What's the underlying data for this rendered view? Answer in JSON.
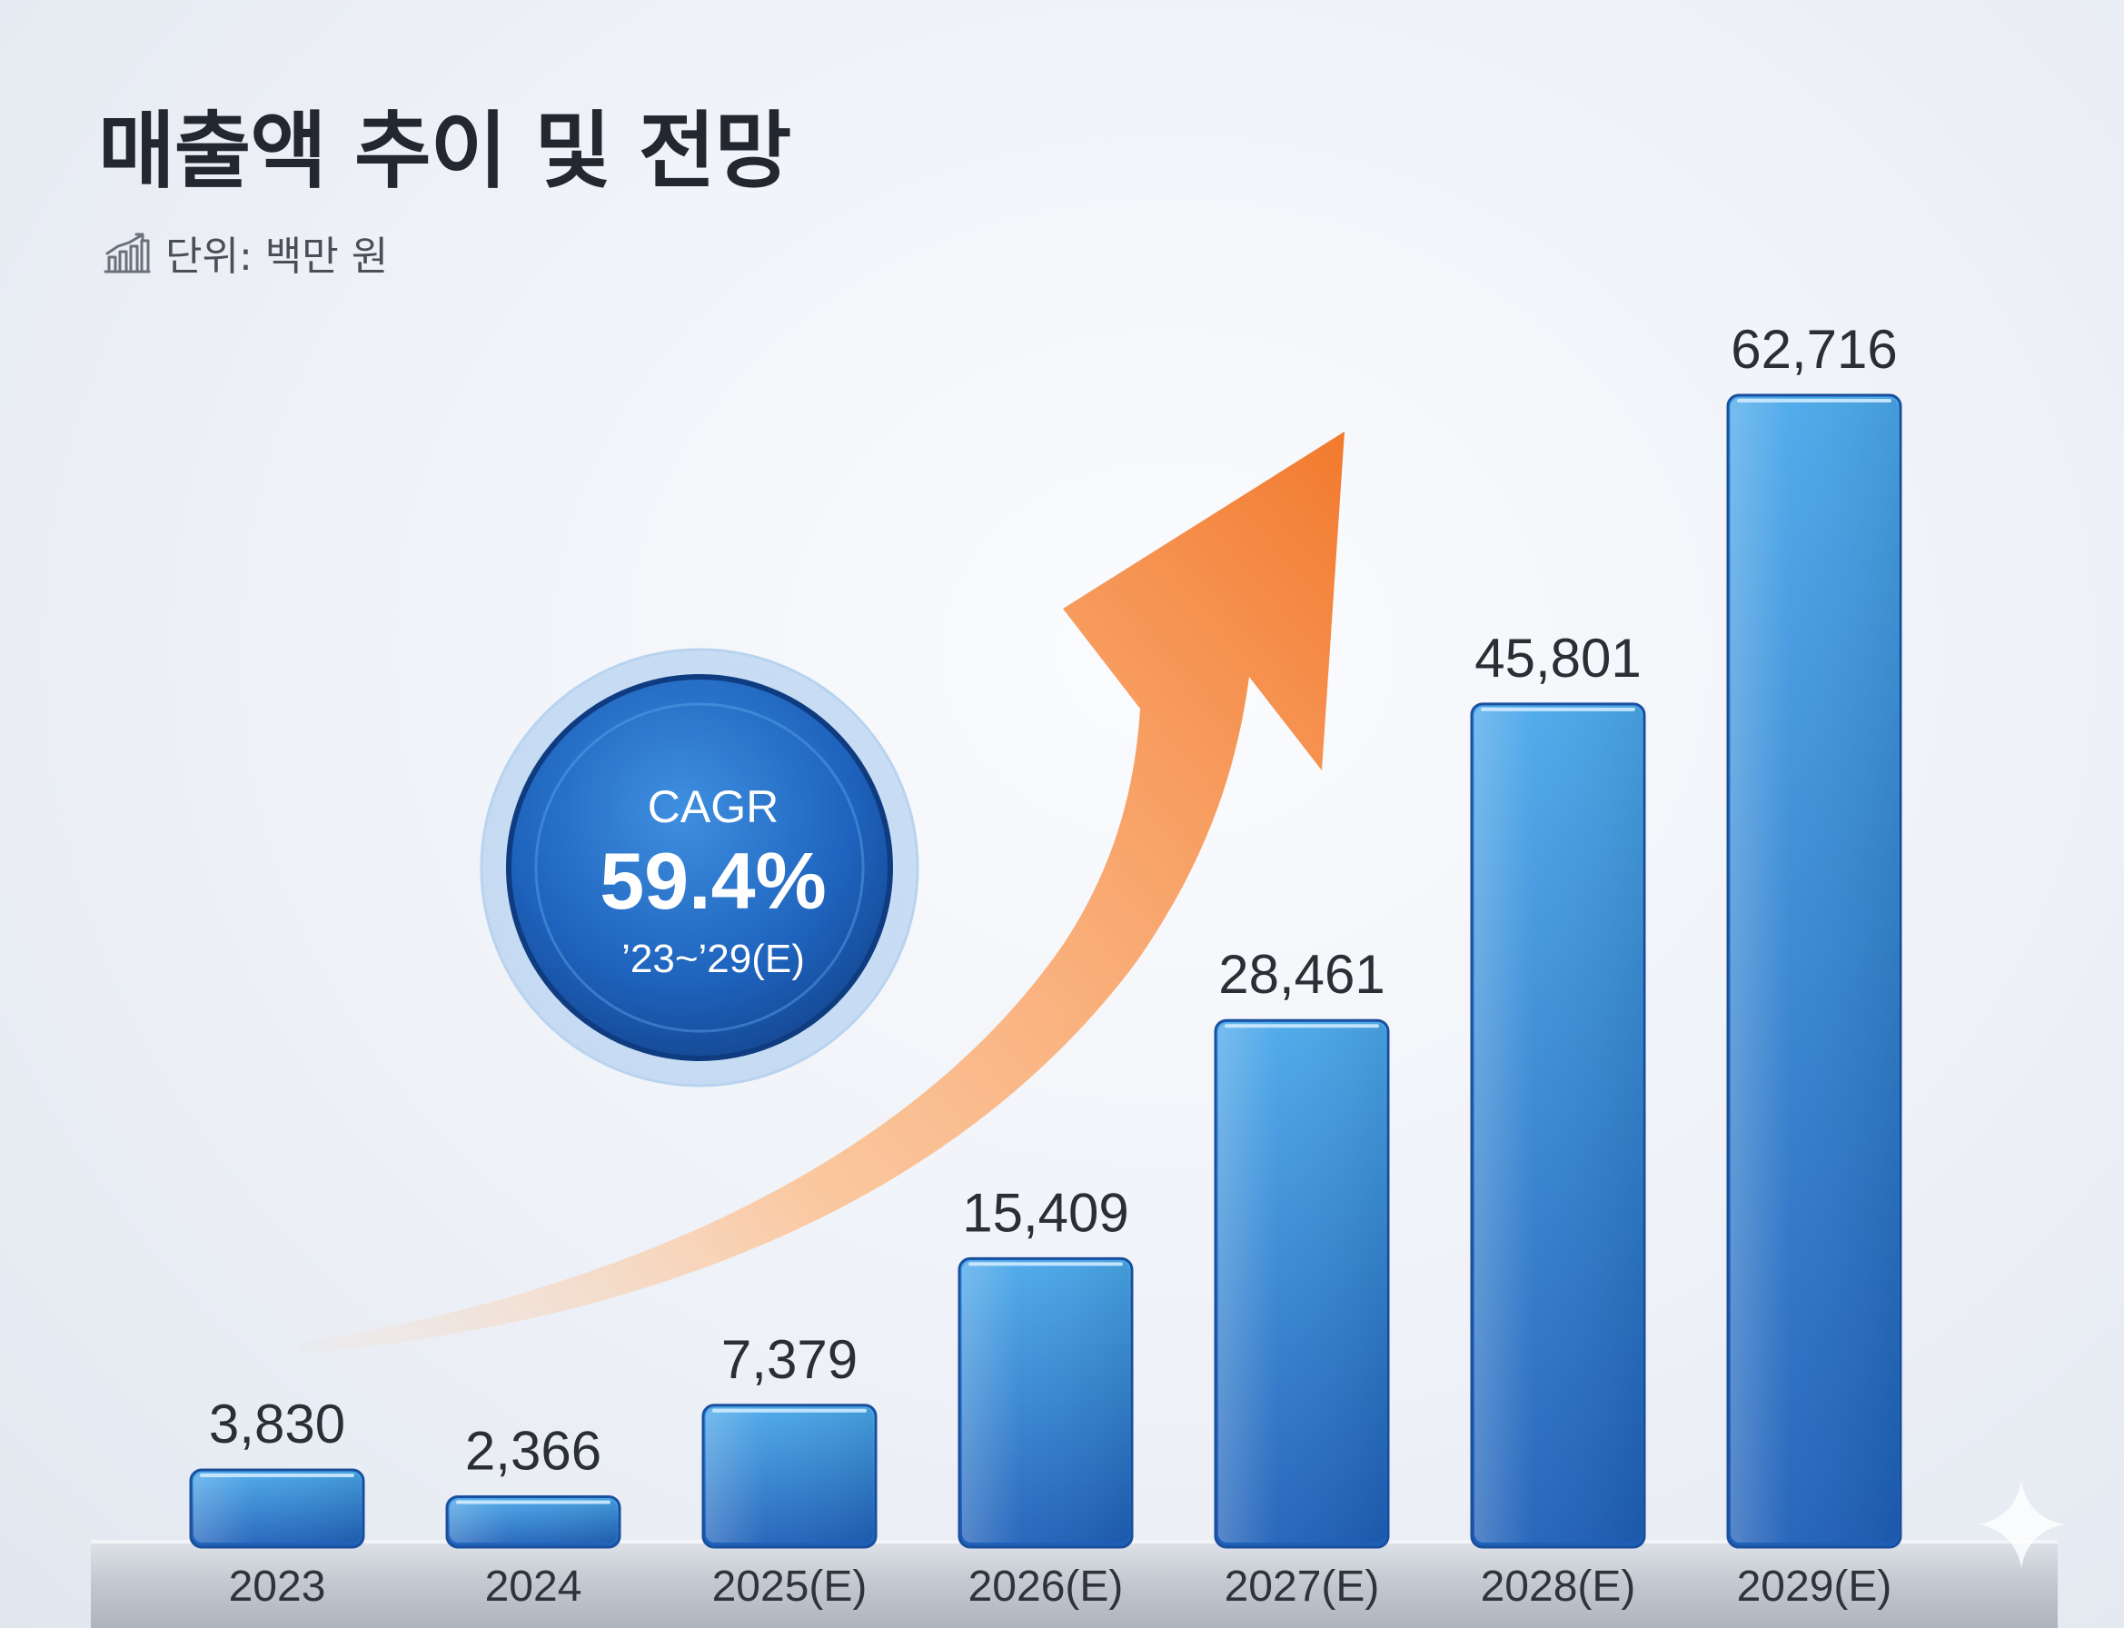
{
  "header": {
    "title": "매출액 추이 및 전망",
    "unit_label": "단위: 백만 원",
    "unit_icon": "chart-icon"
  },
  "cagr_badge": {
    "label": "CAGR",
    "value": "59.4%",
    "period": "’23~’29(E)"
  },
  "colors": {
    "bar_top": "#4aa8ea",
    "bar_bottom": "#1e5fb8",
    "arrow_start": "#ffc79a",
    "arrow_end": "#f27a2e",
    "badge": "#1e63bd",
    "baseline": "#c5cad2"
  },
  "chart_data": {
    "type": "bar",
    "categories": [
      "2023",
      "2024",
      "2025(E)",
      "2026(E)",
      "2027(E)",
      "2028(E)",
      "2029(E)"
    ],
    "values": [
      3830,
      2366,
      7379,
      15409,
      28461,
      45801,
      62716
    ],
    "value_labels": [
      "3,830",
      "2,366",
      "7,379",
      "15,409",
      "28,461",
      "45,801",
      "62,716"
    ],
    "title": "매출액 추이 및 전망",
    "ylim": [
      0,
      62716
    ],
    "grid": false,
    "legend": "none"
  }
}
